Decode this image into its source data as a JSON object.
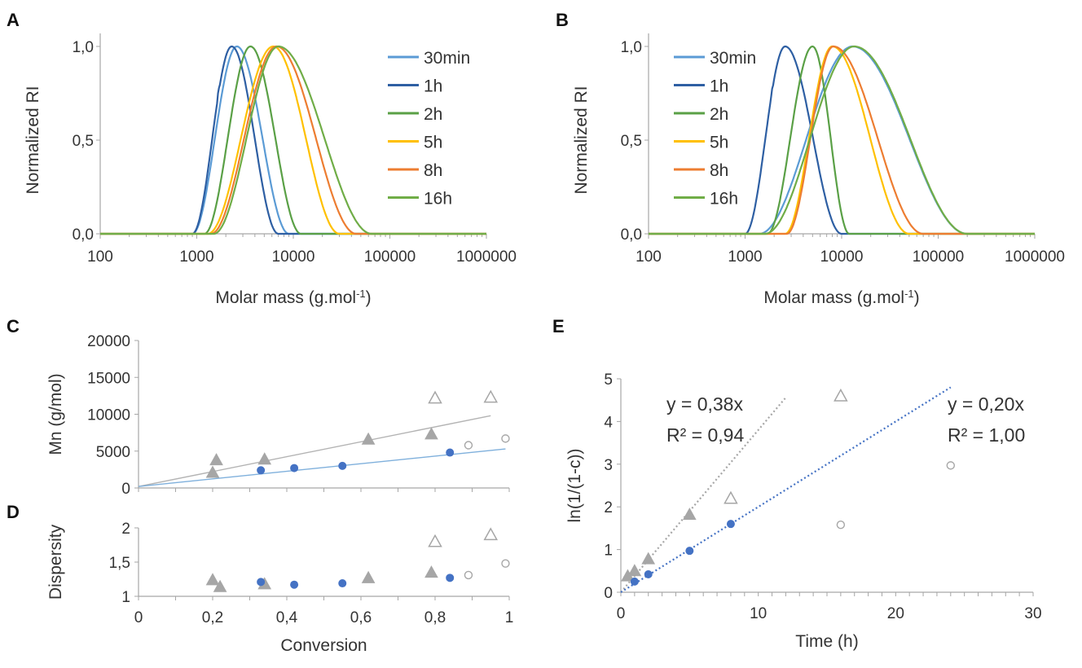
{
  "chart_data": [
    {
      "panel": "A",
      "type": "line",
      "xlabel": "Molar mass (g.mol-1)",
      "ylabel": "Normalized RI",
      "xscale": "log",
      "xlim": [
        100,
        1000000
      ],
      "ylim": [
        0,
        1
      ],
      "x_tick_labels": [
        "100",
        "1000",
        "10000",
        "100000",
        "1000000"
      ],
      "y_tick_labels": [
        "0,0",
        "0,5",
        "1,0"
      ],
      "legend_position": "top-right",
      "series": [
        {
          "name": "30min",
          "color": "#5b9bd5",
          "peak": 2600,
          "lo": 900,
          "hi": 9000,
          "shoulder": true
        },
        {
          "name": "1h",
          "color": "#2e5fa3",
          "peak": 2300,
          "lo": 900,
          "hi": 7000,
          "shoulder": true
        },
        {
          "name": "2h",
          "color": "#5aa046",
          "peak": 3600,
          "lo": 1200,
          "hi": 12000,
          "shoulder": false
        },
        {
          "name": "5h",
          "color": "#ffc000",
          "peak": 6200,
          "lo": 1300,
          "hi": 30000,
          "shoulder": false
        },
        {
          "name": "8h",
          "color": "#ed7d31",
          "peak": 6700,
          "lo": 1400,
          "hi": 45000,
          "shoulder": false
        },
        {
          "name": "16h",
          "color": "#70ad47",
          "peak": 7000,
          "lo": 1500,
          "hi": 65000,
          "shoulder": false
        }
      ]
    },
    {
      "panel": "B",
      "type": "line",
      "xlabel": "Molar mass (g.mol-1)",
      "ylabel": "Normalized RI",
      "xscale": "log",
      "xlim": [
        100,
        1000000
      ],
      "ylim": [
        0,
        1
      ],
      "x_tick_labels": [
        "100",
        "1000",
        "10000",
        "100000",
        "1000000"
      ],
      "y_tick_labels": [
        "0,0",
        "0,5",
        "1,0"
      ],
      "legend_position": "top-left",
      "series": [
        {
          "name": "30min",
          "color": "#5b9bd5",
          "peak": 13000,
          "lo": 1400,
          "hi": 200000,
          "shoulder": false
        },
        {
          "name": "1h",
          "color": "#2e5fa3",
          "peak": 2600,
          "lo": 1000,
          "hi": 10000,
          "shoulder": true
        },
        {
          "name": "2h",
          "color": "#5aa046",
          "peak": 5000,
          "lo": 1700,
          "hi": 12000,
          "shoulder": false
        },
        {
          "name": "5h",
          "color": "#ffc000",
          "peak": 8000,
          "lo": 2600,
          "hi": 50000,
          "shoulder": false
        },
        {
          "name": "8h",
          "color": "#ed7d31",
          "peak": 8200,
          "lo": 2700,
          "hi": 70000,
          "shoulder": false
        },
        {
          "name": "16h",
          "color": "#70ad47",
          "peak": 13500,
          "lo": 1600,
          "hi": 200000,
          "shoulder": false
        }
      ]
    },
    {
      "panel": "C",
      "type": "scatter",
      "xlabel": "",
      "ylabel": "Mn (g/mol)",
      "xlim": [
        0,
        1
      ],
      "ylim": [
        0,
        20000
      ],
      "y_tick_labels": [
        "0",
        "5000",
        "10000",
        "15000",
        "20000"
      ],
      "series": [
        {
          "marker": "triangle",
          "fill": "#a6a6a6",
          "x": [
            0.2,
            0.21,
            0.34,
            0.62,
            0.79
          ],
          "y": [
            2100,
            3800,
            3900,
            6600,
            7300
          ]
        },
        {
          "marker": "triangle-open",
          "fill": "#a6a6a6",
          "x": [
            0.8,
            0.95
          ],
          "y": [
            12200,
            12300
          ]
        },
        {
          "marker": "circle",
          "fill": "#4472c4",
          "x": [
            0.33,
            0.42,
            0.55,
            0.84
          ],
          "y": [
            2400,
            2700,
            3000,
            4800
          ]
        },
        {
          "marker": "circle-open",
          "fill": "#a6a6a6",
          "x": [
            0.89,
            0.99
          ],
          "y": [
            5800,
            6700
          ]
        }
      ],
      "trendlines": [
        {
          "color": "#b3b3b3",
          "x": [
            0,
            0.95
          ],
          "y": [
            200,
            9800
          ]
        },
        {
          "color": "#7fb0dc",
          "x": [
            0,
            0.99
          ],
          "y": [
            200,
            5300
          ]
        }
      ]
    },
    {
      "panel": "D",
      "type": "scatter",
      "xlabel": "Conversion",
      "ylabel": "Dispersity",
      "xlim": [
        0,
        1
      ],
      "ylim": [
        1,
        2
      ],
      "x_tick_labels": [
        "0",
        "0,2",
        "0,4",
        "0,6",
        "0,8",
        "1"
      ],
      "y_tick_labels": [
        "1",
        "1,5",
        "2"
      ],
      "series": [
        {
          "marker": "triangle",
          "fill": "#a6a6a6",
          "x": [
            0.2,
            0.22,
            0.34,
            0.62,
            0.79
          ],
          "y": [
            1.24,
            1.14,
            1.18,
            1.27,
            1.35
          ]
        },
        {
          "marker": "triangle-open",
          "fill": "#a6a6a6",
          "x": [
            0.8,
            0.95
          ],
          "y": [
            1.8,
            1.9
          ]
        },
        {
          "marker": "circle",
          "fill": "#4472c4",
          "x": [
            0.33,
            0.42,
            0.55,
            0.84
          ],
          "y": [
            1.21,
            1.17,
            1.19,
            1.27
          ]
        },
        {
          "marker": "circle-open",
          "fill": "#a6a6a6",
          "x": [
            0.89,
            0.99
          ],
          "y": [
            1.31,
            1.48
          ]
        }
      ]
    },
    {
      "panel": "E",
      "type": "scatter",
      "xlabel": "Time (h)",
      "ylabel": "ln(1/(1-c))",
      "xlim": [
        0,
        30
      ],
      "ylim": [
        0,
        5
      ],
      "x_tick_labels": [
        "0",
        "10",
        "20",
        "30"
      ],
      "y_tick_labels": [
        "0",
        "1",
        "2",
        "3",
        "4",
        "5"
      ],
      "series": [
        {
          "marker": "triangle",
          "fill": "#a6a6a6",
          "x": [
            0.5,
            1,
            2,
            5
          ],
          "y": [
            0.38,
            0.5,
            0.78,
            1.82
          ]
        },
        {
          "marker": "triangle-open",
          "fill": "#a6a6a6",
          "x": [
            8,
            16
          ],
          "y": [
            2.2,
            4.6
          ]
        },
        {
          "marker": "circle",
          "fill": "#4472c4",
          "x": [
            1,
            2,
            5,
            8
          ],
          "y": [
            0.25,
            0.42,
            0.97,
            1.6
          ]
        },
        {
          "marker": "circle-open",
          "fill": "#a6a6a6",
          "x": [
            16,
            24
          ],
          "y": [
            1.58,
            2.97
          ]
        }
      ],
      "trendlines": [
        {
          "color": "#a6a6a6",
          "dashed": true,
          "x": [
            0,
            12
          ],
          "y": [
            0,
            4.56
          ]
        },
        {
          "color": "#4472c4",
          "dashed": true,
          "x": [
            0,
            24
          ],
          "y": [
            0,
            4.8
          ]
        }
      ],
      "annotations": [
        {
          "line1": "y = 0,38x",
          "line2": "R² = 0,94"
        },
        {
          "line1": "y = 0,20x",
          "line2": "R² = 1,00"
        }
      ]
    }
  ]
}
